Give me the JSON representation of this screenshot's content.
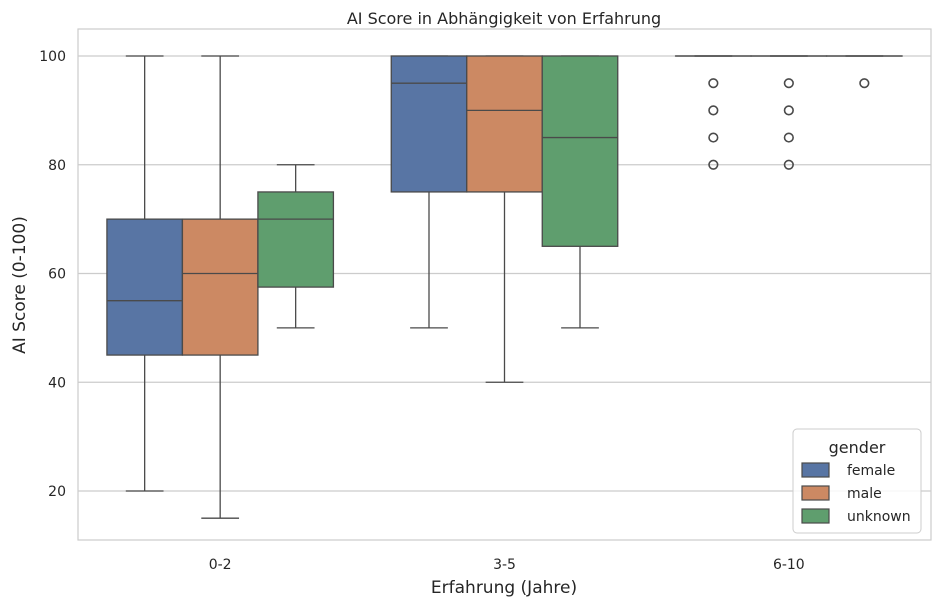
{
  "chart_data": {
    "type": "box",
    "title": "AI Score in Abhängigkeit von Erfahrung",
    "xlabel": "Erfahrung (Jahre)",
    "ylabel": "AI Score (0-100)",
    "ylim": [
      11,
      104
    ],
    "yticks": [
      20,
      40,
      60,
      80,
      100
    ],
    "grid": "horizontal",
    "categories": [
      "0-2",
      "3-5",
      "6-10"
    ],
    "legend": {
      "title": "gender",
      "position": "bottom-right"
    },
    "series": [
      {
        "name": "female",
        "color": "#5875a4",
        "boxes": [
          {
            "whisker_low": 20,
            "q1": 45,
            "median": 55,
            "q3": 70,
            "whisker_high": 100,
            "outliers": []
          },
          {
            "whisker_low": 50,
            "q1": 75,
            "median": 95,
            "q3": 100,
            "whisker_high": 100,
            "outliers": []
          },
          {
            "whisker_low": 100,
            "q1": 100,
            "median": 100,
            "q3": 100,
            "whisker_high": 100,
            "outliers": [
              80,
              85,
              90,
              95
            ]
          }
        ]
      },
      {
        "name": "male",
        "color": "#cc8963",
        "boxes": [
          {
            "whisker_low": 15,
            "q1": 45,
            "median": 60,
            "q3": 70,
            "whisker_high": 100,
            "outliers": []
          },
          {
            "whisker_low": 40,
            "q1": 75,
            "median": 90,
            "q3": 100,
            "whisker_high": 100,
            "outliers": []
          },
          {
            "whisker_low": 100,
            "q1": 100,
            "median": 100,
            "q3": 100,
            "whisker_high": 100,
            "outliers": [
              80,
              85,
              90,
              95
            ]
          }
        ]
      },
      {
        "name": "unknown",
        "color": "#5f9e6e",
        "boxes": [
          {
            "whisker_low": 50,
            "q1": 57.5,
            "median": 70,
            "q3": 75,
            "whisker_high": 80,
            "outliers": []
          },
          {
            "whisker_low": 50,
            "q1": 65,
            "median": 85,
            "q3": 100,
            "whisker_high": 100,
            "outliers": []
          },
          {
            "whisker_low": 100,
            "q1": 100,
            "median": 100,
            "q3": 100,
            "whisker_high": 100,
            "outliers": [
              95
            ]
          }
        ]
      }
    ]
  }
}
